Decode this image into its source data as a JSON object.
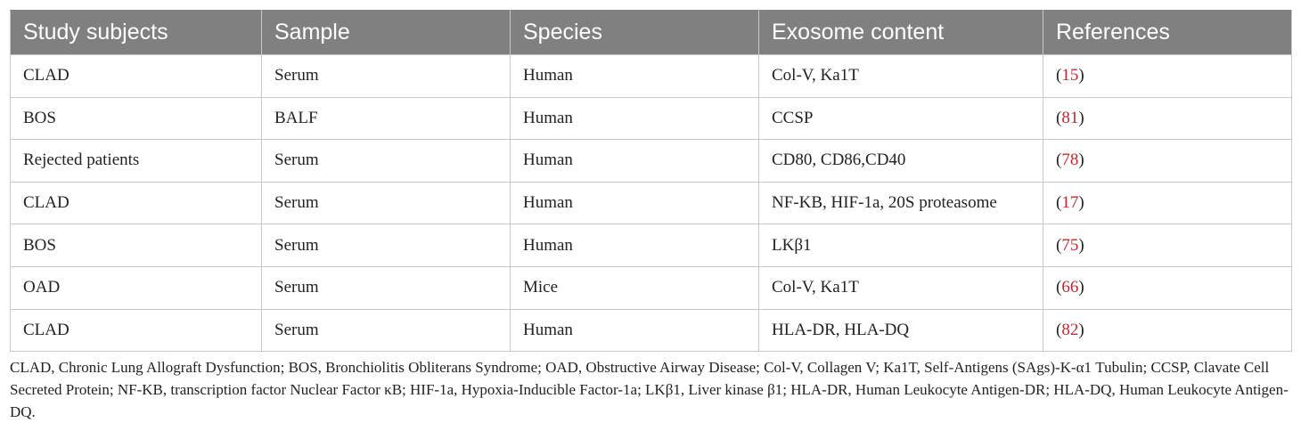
{
  "table": {
    "headers": [
      "Study subjects",
      "Sample",
      "Species",
      "Exosome content",
      "References"
    ],
    "rows": [
      {
        "subject": "CLAD",
        "sample": "Serum",
        "species": "Human",
        "content": "Col-V, Ka1T",
        "ref_open": "(",
        "ref": "15",
        "ref_close": ")"
      },
      {
        "subject": "BOS",
        "sample": "BALF",
        "species": "Human",
        "content": "CCSP",
        "ref_open": "(",
        "ref": "81",
        "ref_close": ")"
      },
      {
        "subject": "Rejected patients",
        "sample": "Serum",
        "species": "Human",
        "content": "CD80, CD86,CD40",
        "ref_open": "(",
        "ref": "78",
        "ref_close": ")"
      },
      {
        "subject": "CLAD",
        "sample": "Serum",
        "species": "Human",
        "content": "NF-KB, HIF-1a, 20S proteasome",
        "ref_open": "(",
        "ref": "17",
        "ref_close": ")"
      },
      {
        "subject": "BOS",
        "sample": "Serum",
        "species": "Human",
        "content": "LKβ1",
        "ref_open": "(",
        "ref": "75",
        "ref_close": ")"
      },
      {
        "subject": "OAD",
        "sample": "Serum",
        "species": "Mice",
        "content": "Col-V, Ka1T",
        "ref_open": "(",
        "ref": "66",
        "ref_close": ")"
      },
      {
        "subject": "CLAD",
        "sample": "Serum",
        "species": "Human",
        "content": "HLA-DR, HLA-DQ",
        "ref_open": "(",
        "ref": "82",
        "ref_close": ")"
      }
    ]
  },
  "footnote": "CLAD, Chronic Lung Allograft Dysfunction; BOS, Bronchiolitis Obliterans Syndrome; OAD, Obstructive Airway Disease; Col-V, Collagen V; Ka1T, Self-Antigens (SAgs)-K-α1 Tubulin; CCSP, Clavate Cell Secreted Protein; NF-KB, transcription factor Nuclear Factor κB; HIF-1a, Hypoxia-Inducible Factor-1a; LKβ1, Liver kinase β1; HLA-DR, Human Leukocyte Antigen-DR; HLA-DQ, Human Leukocyte Antigen-DQ.",
  "colors": {
    "header_bg": "#808080",
    "header_text": "#ffffff",
    "border": "#c8c8c8",
    "reference_link": "#c0282d"
  }
}
